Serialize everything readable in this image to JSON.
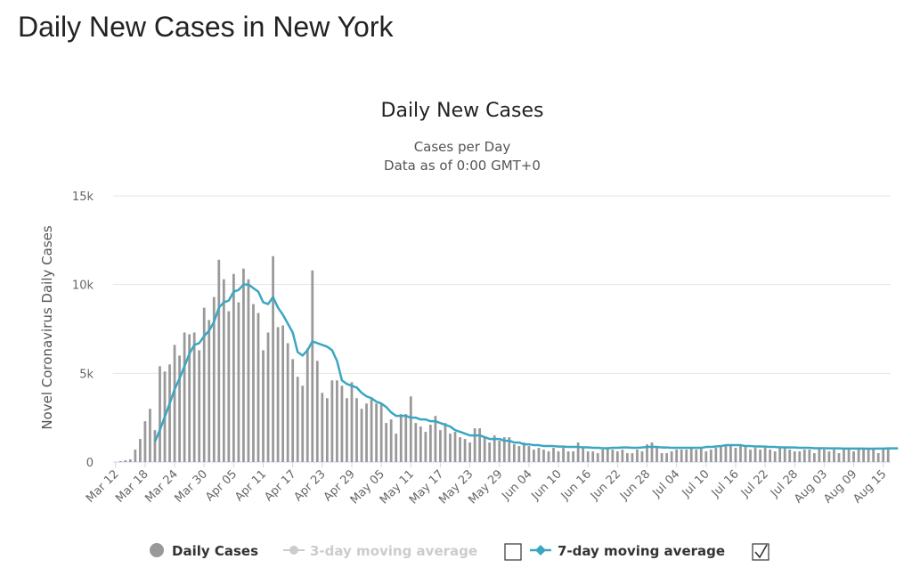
{
  "page": {
    "title": "Daily New Cases in New York"
  },
  "chart_data": {
    "type": "bar",
    "title": "Daily New Cases",
    "subtitle": "Cases per Day",
    "subtitle2": "Data as of 0:00 GMT+0",
    "ylabel": "Novel Coronavirus Daily Cases",
    "xlabel": "",
    "ylim": [
      0,
      15000
    ],
    "yticks": [
      {
        "value": 0,
        "label": "0"
      },
      {
        "value": 5000,
        "label": "5k"
      },
      {
        "value": 10000,
        "label": "10k"
      },
      {
        "value": 15000,
        "label": "15k"
      }
    ],
    "grid": true,
    "legend_position": "bottom",
    "xtick_labels": [
      "Mar 12",
      "Mar 18",
      "Mar 24",
      "Mar 30",
      "Apr 05",
      "Apr 11",
      "Apr 17",
      "Apr 23",
      "Apr 29",
      "May 05",
      "May 11",
      "May 17",
      "May 23",
      "May 29",
      "Jun 04",
      "Jun 10",
      "Jun 16",
      "Jun 22",
      "Jun 28",
      "Jul 04",
      "Jul 10",
      "Jul 16",
      "Jul 22",
      "Jul 28",
      "Aug 03",
      "Aug 09",
      "Aug 15"
    ],
    "xtick_every": 6,
    "series": [
      {
        "name": "Daily Cases",
        "kind": "bar",
        "color": "#999999",
        "values": [
          0,
          50,
          100,
          150,
          700,
          1300,
          2300,
          3000,
          1800,
          5400,
          5100,
          5500,
          6600,
          6000,
          7300,
          7200,
          7300,
          6300,
          8700,
          8000,
          9300,
          11400,
          10300,
          8500,
          10600,
          9000,
          10900,
          10300,
          8900,
          8400,
          6300,
          7300,
          11600,
          7600,
          7700,
          6700,
          5800,
          4800,
          4300,
          6400,
          10800,
          5700,
          3900,
          3600,
          4600,
          4600,
          4300,
          3600,
          4500,
          3600,
          3000,
          3300,
          3600,
          3300,
          3300,
          2200,
          2400,
          1600,
          2700,
          2700,
          3700,
          2200,
          2000,
          1700,
          2100,
          2600,
          1800,
          2200,
          1600,
          1700,
          1400,
          1300,
          1100,
          1900,
          1900,
          1400,
          1100,
          1500,
          1200,
          1400,
          1400,
          1000,
          900,
          1100,
          900,
          700,
          800,
          700,
          600,
          800,
          600,
          800,
          600,
          600,
          1100,
          800,
          600,
          600,
          500,
          700,
          800,
          700,
          600,
          700,
          500,
          500,
          700,
          600,
          1000,
          1100,
          800,
          500,
          500,
          600,
          700,
          700,
          700,
          800,
          700,
          800,
          600,
          700,
          800,
          900,
          1000,
          1000,
          800,
          900,
          900,
          700,
          800,
          700,
          800,
          700,
          600,
          800,
          800,
          700,
          600,
          600,
          700,
          700,
          500,
          800,
          700,
          600,
          700,
          500,
          700,
          700,
          600,
          700,
          800,
          800,
          800,
          500,
          800,
          800
        ]
      },
      {
        "name": "3-day moving average",
        "kind": "line",
        "color": "#cccccc",
        "visible": false
      },
      {
        "name": "7-day moving average",
        "kind": "line",
        "color": "#3aa6c2",
        "visible": true,
        "values": [
          null,
          null,
          null,
          null,
          null,
          null,
          null,
          null,
          1150,
          1800,
          2550,
          3300,
          4100,
          4700,
          5400,
          6100,
          6600,
          6700,
          7100,
          7400,
          7900,
          8700,
          9000,
          9100,
          9600,
          9700,
          10000,
          10000,
          9800,
          9600,
          9000,
          8900,
          9300,
          8700,
          8300,
          7800,
          7300,
          6200,
          6000,
          6300,
          6800,
          6700,
          6600,
          6500,
          6300,
          5700,
          4600,
          4400,
          4300,
          4200,
          3900,
          3700,
          3600,
          3400,
          3300,
          3100,
          2800,
          2600,
          2600,
          2600,
          2500,
          2500,
          2400,
          2400,
          2300,
          2300,
          2200,
          2100,
          2000,
          1800,
          1700,
          1600,
          1500,
          1500,
          1500,
          1400,
          1300,
          1300,
          1300,
          1200,
          1200,
          1100,
          1100,
          1000,
          1000,
          950,
          950,
          900,
          900,
          900,
          870,
          870,
          850,
          850,
          850,
          830,
          830,
          800,
          800,
          780,
          780,
          800,
          800,
          820,
          820,
          800,
          800,
          820,
          850,
          850,
          850,
          820,
          820,
          800,
          800,
          800,
          800,
          800,
          800,
          800,
          850,
          850,
          880,
          900,
          950,
          950,
          950,
          950,
          900,
          900,
          880,
          880,
          870,
          850,
          850,
          830,
          830,
          820,
          820,
          800,
          800,
          800,
          780,
          780,
          780,
          770,
          770,
          770,
          760,
          760,
          760,
          760,
          760,
          750,
          750,
          760,
          760,
          770,
          770,
          770
        ]
      }
    ]
  },
  "legend": {
    "items": [
      {
        "label": "Daily Cases",
        "color": "#999999",
        "active": true
      },
      {
        "label": "3-day moving average",
        "color": "#cccccc",
        "active": false,
        "checked": false
      },
      {
        "label": "7-day moving average",
        "color": "#3aa6c2",
        "active": true,
        "checked": true
      }
    ]
  }
}
